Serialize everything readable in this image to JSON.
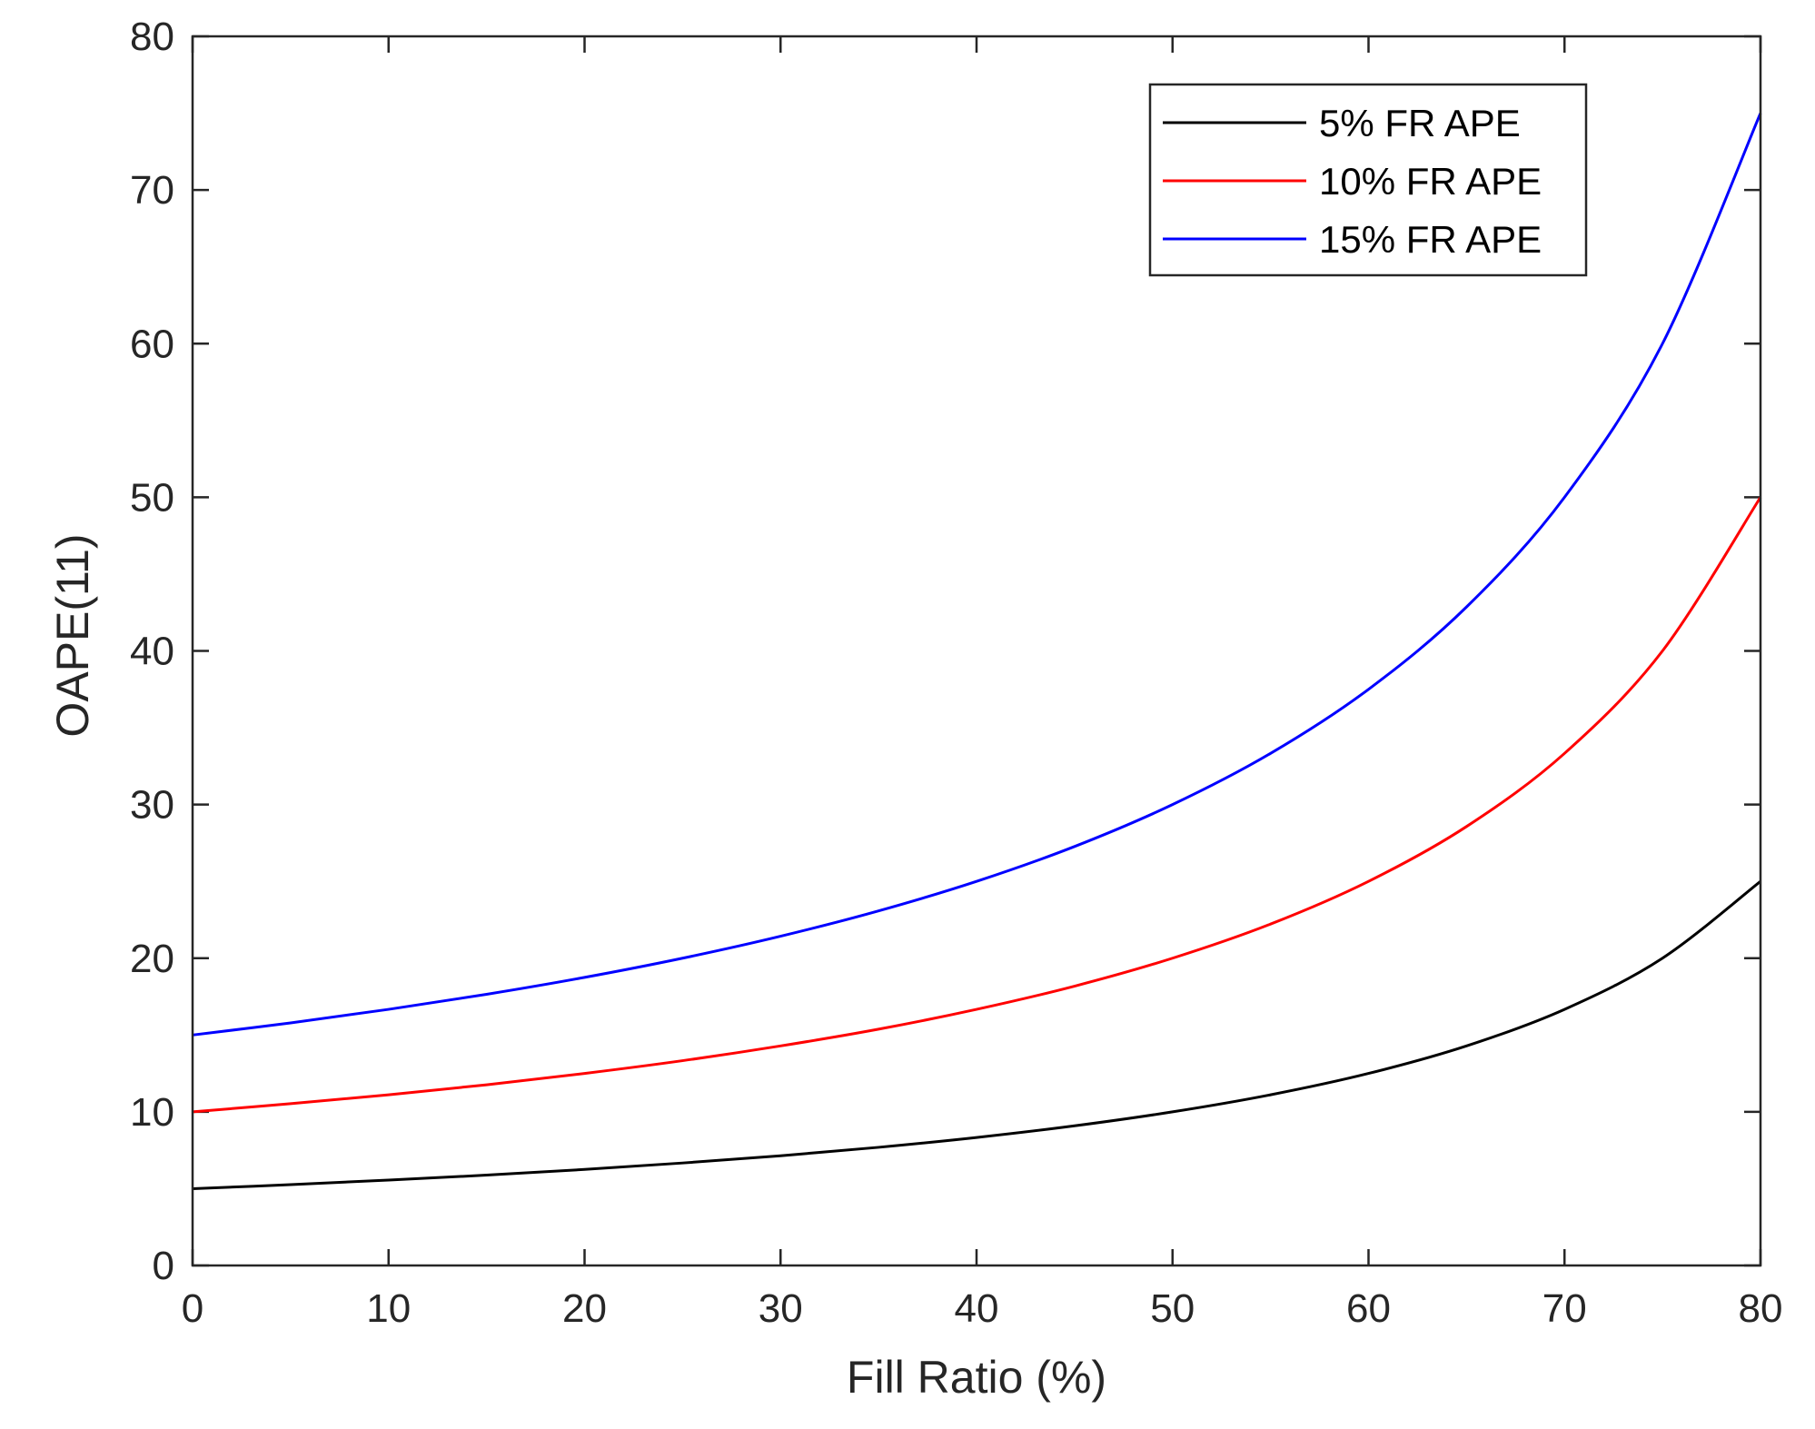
{
  "chart_data": {
    "type": "line",
    "title": "",
    "xlabel": "Fill Ratio (%)",
    "ylabel": "OAPE(11)",
    "xlim": [
      0,
      80
    ],
    "ylim": [
      0,
      80
    ],
    "xticks": [
      0,
      10,
      20,
      30,
      40,
      50,
      60,
      70,
      80
    ],
    "yticks": [
      0,
      10,
      20,
      30,
      40,
      50,
      60,
      70,
      80
    ],
    "xtick_labels": [
      "0",
      "10",
      "20",
      "30",
      "40",
      "50",
      "60",
      "70",
      "80"
    ],
    "ytick_labels": [
      "0",
      "10",
      "20",
      "30",
      "40",
      "50",
      "60",
      "70",
      "80"
    ],
    "grid": false,
    "legend_position": "top-right",
    "x": [
      0,
      5,
      10,
      15,
      20,
      25,
      30,
      35,
      40,
      45,
      50,
      55,
      60,
      65,
      70,
      75,
      80
    ],
    "series": [
      {
        "name": "5% FR APE",
        "color": "#000000",
        "values": [
          5.0,
          5.26,
          5.56,
          5.88,
          6.25,
          6.67,
          7.14,
          7.69,
          8.33,
          9.09,
          10.0,
          11.11,
          12.5,
          14.29,
          16.67,
          20.0,
          25.0
        ]
      },
      {
        "name": "10% FR APE",
        "color": "#ff0000",
        "values": [
          10.0,
          10.53,
          11.11,
          11.76,
          12.5,
          13.33,
          14.29,
          15.38,
          16.67,
          18.18,
          20.0,
          22.22,
          25.0,
          28.57,
          33.33,
          40.0,
          50.0
        ]
      },
      {
        "name": "15% FR APE",
        "color": "#0000ff",
        "values": [
          15.0,
          15.79,
          16.67,
          17.65,
          18.75,
          20.0,
          21.43,
          23.08,
          25.0,
          27.27,
          30.0,
          33.33,
          37.5,
          42.86,
          50.0,
          60.0,
          75.0
        ]
      }
    ]
  }
}
